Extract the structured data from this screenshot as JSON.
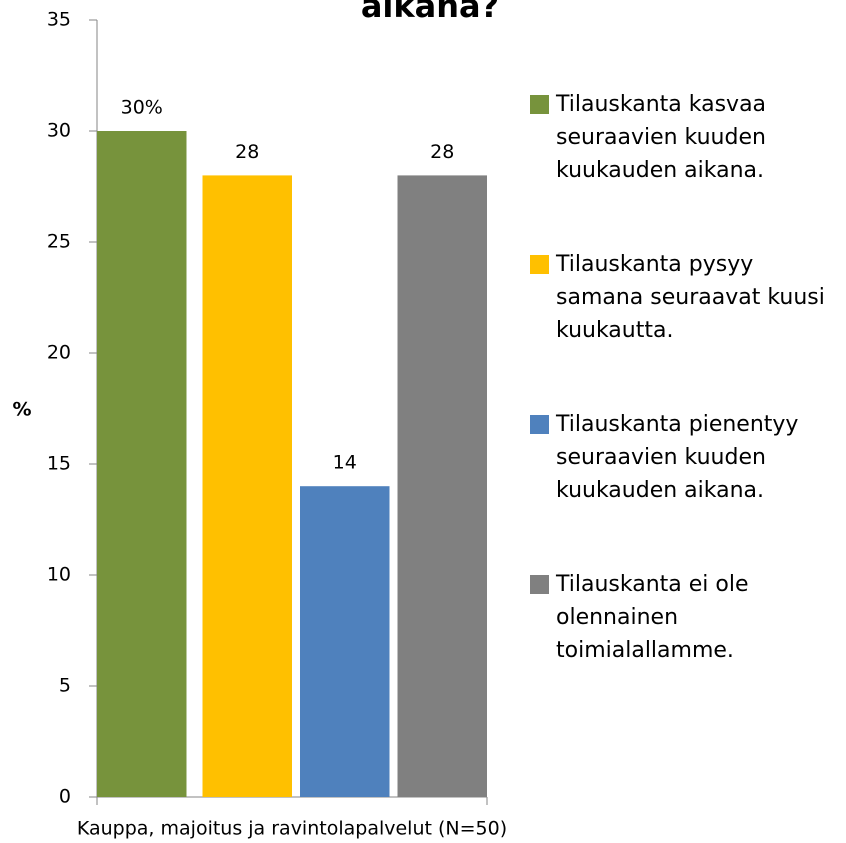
{
  "chart_data": {
    "type": "bar",
    "title": "aikana?",
    "categories": [
      "Kauppa, majoitus ja ravintolapalvelut (N=50)"
    ],
    "series": [
      {
        "name": "Tilauskanta kasvaa seuraavien kuuden kuukauden aikana.",
        "color": "#77933c",
        "values": [
          30
        ],
        "value_labels": [
          "30%"
        ]
      },
      {
        "name": "Tilauskanta pysyy samana seuraavat kuusi kuukautta.",
        "color": "#ffc000",
        "values": [
          28
        ]
      },
      {
        "name": "Tilauskanta pienentyy seuraavien kuuden kuukauden aikana.",
        "color": "#4f81bd",
        "values": [
          14
        ]
      },
      {
        "name": "Tilauskanta ei ole olennainen toimialallamme.",
        "color": "#808080",
        "values": [
          28
        ]
      }
    ],
    "ylabel": "%",
    "ylim": [
      0,
      35
    ],
    "yticks": [
      0,
      5,
      10,
      15,
      20,
      25,
      30,
      35
    ],
    "legend": "right"
  }
}
